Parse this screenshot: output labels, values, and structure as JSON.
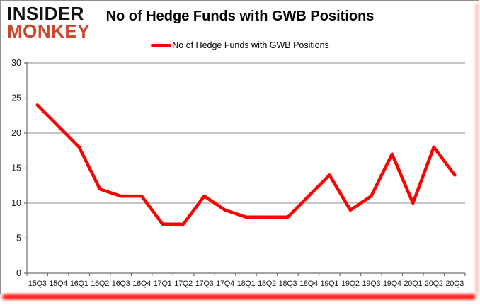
{
  "logo": {
    "line1": "INSIDER",
    "line2": "MONKEY"
  },
  "header": {
    "title": "No of Hedge Funds with GWB Positions"
  },
  "legend": {
    "label": "No of Hedge Funds with GWB Positions"
  },
  "colors": {
    "series": "#ff0000",
    "logo_accent": "#c8472e",
    "gridline": "#8e8e8e",
    "axis": "#6e6e6e",
    "tick_label": "#1a1a1a",
    "shadow": "#ff0000"
  },
  "chart_data": {
    "type": "line",
    "title": "No of Hedge Funds with GWB Positions",
    "categories": [
      "15Q3",
      "15Q4",
      "16Q1",
      "16Q2",
      "16Q3",
      "16Q4",
      "17Q1",
      "17Q2",
      "17Q3",
      "17Q4",
      "18Q1",
      "18Q2",
      "18Q3",
      "18Q4",
      "19Q1",
      "19Q2",
      "19Q3",
      "19Q4",
      "20Q1",
      "20Q2",
      "20Q3"
    ],
    "series": [
      {
        "name": "No of Hedge Funds with GWB Positions",
        "values": [
          24,
          21,
          18,
          12,
          11,
          11,
          7,
          7,
          11,
          9,
          8,
          8,
          8,
          11,
          14,
          9,
          11,
          17,
          10,
          18,
          14
        ]
      }
    ],
    "xlabel": "",
    "ylabel": "",
    "ylim": [
      0,
      30
    ],
    "yticks": [
      0,
      5,
      10,
      15,
      20,
      25,
      30
    ],
    "grid": true,
    "legend_position": "top"
  }
}
